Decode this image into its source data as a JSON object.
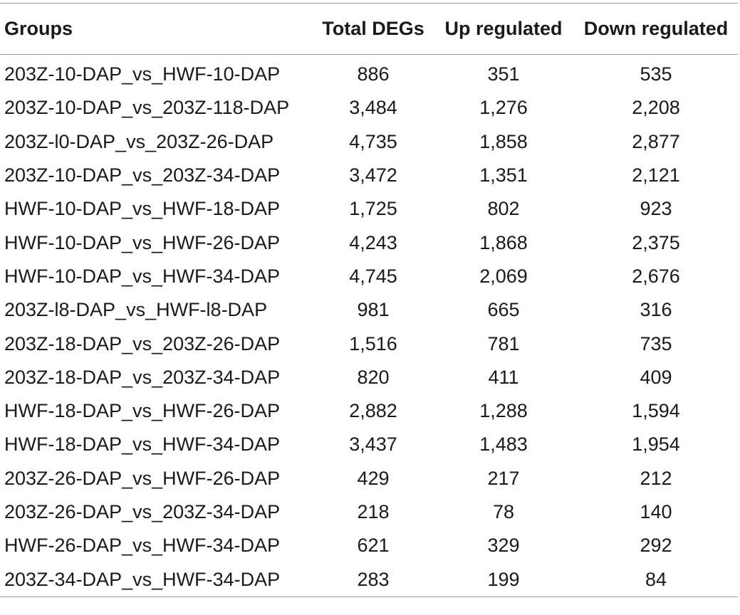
{
  "table": {
    "headers": [
      "Groups",
      "Total DEGs",
      "Up regulated",
      "Down regulated"
    ],
    "rows": [
      [
        "203Z-10-DAP_vs_HWF-10-DAP",
        "886",
        "351",
        "535"
      ],
      [
        "203Z-10-DAP_vs_203Z-118-DAP",
        "3,484",
        "1,276",
        "2,208"
      ],
      [
        "203Z-l0-DAP_vs_203Z-26-DAP",
        "4,735",
        "1,858",
        "2,877"
      ],
      [
        "203Z-10-DAP_vs_203Z-34-DAP",
        "3,472",
        "1,351",
        "2,121"
      ],
      [
        "HWF-10-DAP_vs_HWF-18-DAP",
        "1,725",
        "802",
        "923"
      ],
      [
        "HWF-10-DAP_vs_HWF-26-DAP",
        "4,243",
        "1,868",
        "2,375"
      ],
      [
        "HWF-10-DAP_vs_HWF-34-DAP",
        "4,745",
        "2,069",
        "2,676"
      ],
      [
        "203Z-l8-DAP_vs_HWF-l8-DAP",
        "981",
        "665",
        "316"
      ],
      [
        "203Z-18-DAP_vs_203Z-26-DAP",
        "1,516",
        "781",
        "735"
      ],
      [
        "203Z-18-DAP_vs_203Z-34-DAP",
        "820",
        "411",
        "409"
      ],
      [
        "HWF-18-DAP_vs_HWF-26-DAP",
        "2,882",
        "1,288",
        "1,594"
      ],
      [
        "HWF-18-DAP_vs_HWF-34-DAP",
        "3,437",
        "1,483",
        "1,954"
      ],
      [
        "203Z-26-DAP_vs_HWF-26-DAP",
        "429",
        "217",
        "212"
      ],
      [
        "203Z-26-DAP_vs_203Z-34-DAP",
        "218",
        "78",
        "140"
      ],
      [
        "HWF-26-DAP_vs_HWF-34-DAP",
        "621",
        "329",
        "292"
      ],
      [
        "203Z-34-DAP_vs_HWF-34-DAP",
        "283",
        "199",
        "84"
      ]
    ]
  }
}
